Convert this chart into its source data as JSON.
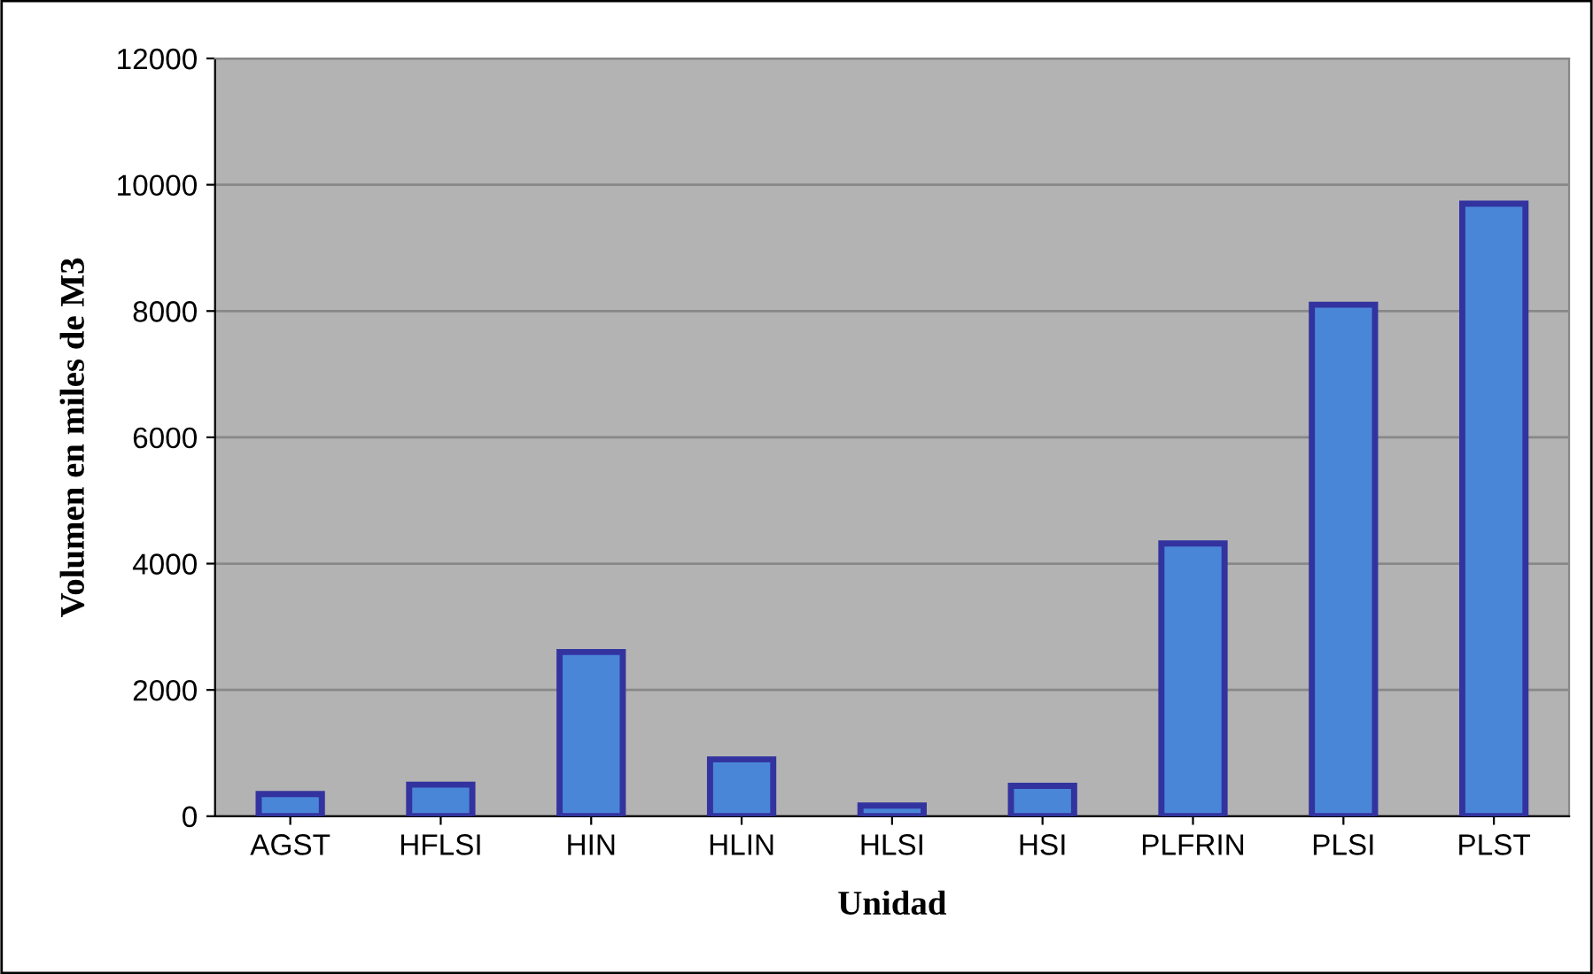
{
  "chart_data": {
    "type": "bar",
    "xlabel": "Unidad",
    "ylabel": "Volumen en miles de M3",
    "categories": [
      "AGST",
      "HFLSI",
      "HIN",
      "HLIN",
      "HLSI",
      "HSI",
      "PLFRIN",
      "PLSI",
      "PLST"
    ],
    "values": [
      350,
      500,
      2600,
      900,
      170,
      480,
      4320,
      8100,
      9700
    ],
    "color": "#4a86d8",
    "ylim": [
      0,
      12000
    ],
    "yticks": [
      0,
      2000,
      4000,
      6000,
      8000,
      10000,
      12000
    ],
    "grid": "y"
  }
}
